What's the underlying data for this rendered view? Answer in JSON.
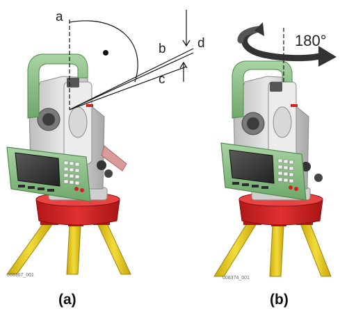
{
  "panel_a": {
    "labels": {
      "a": "a",
      "b": "b",
      "c": "c",
      "d": "d"
    },
    "image_code": "008367_001",
    "caption": "(a)"
  },
  "panel_b": {
    "rotation_label": "180°",
    "image_code": "008374_001",
    "caption": "(b)"
  },
  "colors": {
    "instrument_green": "#8fc08b",
    "instrument_body": "#dcdcdc",
    "tribrach_red": "#d22020",
    "tripod_yellow": "#ecd320",
    "display_screen": "#3a3a3a",
    "arrow_dark": "#333333"
  }
}
